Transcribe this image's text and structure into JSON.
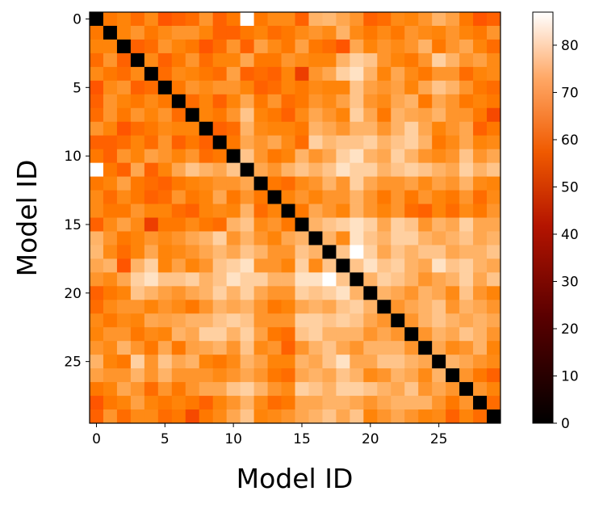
{
  "chart_data": {
    "type": "heatmap",
    "title": "",
    "xlabel": "Model ID",
    "ylabel": "Model ID",
    "n": 30,
    "xlim": [
      -0.5,
      29.5
    ],
    "ylim": [
      29.5,
      -0.5
    ],
    "x_ticks": [
      0,
      5,
      10,
      15,
      20,
      25
    ],
    "y_ticks": [
      0,
      5,
      10,
      15,
      20,
      25
    ],
    "colormap": "gist_heat",
    "colorbar": {
      "vmin": 0,
      "vmax": 87,
      "ticks": [
        0,
        10,
        20,
        30,
        40,
        50,
        60,
        70,
        80
      ]
    },
    "diagonal_value": 0,
    "values": [
      [
        0,
        64,
        66,
        62,
        67,
        58,
        60,
        62,
        69,
        60,
        64,
        87,
        64,
        67,
        67,
        60,
        74,
        75,
        72,
        69,
        60,
        62,
        67,
        66,
        69,
        74,
        71,
        64,
        58,
        60
      ],
      [
        64,
        0,
        66,
        69,
        64,
        67,
        69,
        69,
        66,
        60,
        60,
        64,
        66,
        62,
        64,
        67,
        69,
        67,
        74,
        67,
        64,
        67,
        64,
        69,
        67,
        66,
        69,
        66,
        64,
        69
      ],
      [
        66,
        66,
        0,
        60,
        62,
        69,
        66,
        64,
        58,
        62,
        69,
        60,
        71,
        67,
        64,
        71,
        64,
        62,
        58,
        72,
        66,
        69,
        67,
        69,
        74,
        64,
        69,
        72,
        66,
        62
      ],
      [
        62,
        69,
        60,
        0,
        67,
        60,
        64,
        69,
        62,
        66,
        66,
        72,
        64,
        64,
        69,
        67,
        66,
        66,
        74,
        79,
        77,
        69,
        66,
        64,
        69,
        79,
        74,
        69,
        71,
        67
      ],
      [
        67,
        64,
        62,
        67,
        0,
        62,
        67,
        66,
        64,
        62,
        71,
        60,
        62,
        60,
        66,
        54,
        69,
        72,
        79,
        82,
        74,
        66,
        72,
        67,
        64,
        69,
        69,
        62,
        66,
        67
      ],
      [
        58,
        67,
        69,
        60,
        62,
        0,
        64,
        69,
        67,
        69,
        69,
        66,
        60,
        62,
        66,
        64,
        67,
        66,
        66,
        77,
        71,
        69,
        71,
        66,
        72,
        77,
        74,
        69,
        64,
        62
      ],
      [
        60,
        69,
        66,
        64,
        67,
        64,
        0,
        62,
        66,
        60,
        66,
        72,
        64,
        69,
        62,
        64,
        69,
        67,
        71,
        77,
        69,
        67,
        72,
        74,
        64,
        72,
        69,
        64,
        66,
        64
      ],
      [
        62,
        69,
        64,
        69,
        66,
        69,
        62,
        0,
        66,
        64,
        69,
        77,
        66,
        64,
        60,
        67,
        72,
        69,
        66,
        79,
        72,
        64,
        74,
        72,
        71,
        74,
        69,
        69,
        64,
        56
      ],
      [
        69,
        66,
        58,
        62,
        64,
        67,
        66,
        66,
        0,
        60,
        62,
        74,
        67,
        66,
        66,
        64,
        74,
        72,
        69,
        74,
        74,
        69,
        74,
        79,
        72,
        66,
        69,
        72,
        60,
        64
      ],
      [
        60,
        60,
        62,
        66,
        62,
        69,
        60,
        64,
        60,
        0,
        64,
        72,
        69,
        72,
        67,
        62,
        79,
        75,
        77,
        77,
        79,
        74,
        77,
        79,
        74,
        64,
        67,
        72,
        66,
        67
      ],
      [
        64,
        60,
        69,
        66,
        71,
        69,
        66,
        69,
        62,
        64,
        0,
        77,
        69,
        64,
        66,
        74,
        69,
        72,
        79,
        82,
        74,
        72,
        79,
        74,
        69,
        67,
        69,
        77,
        69,
        72
      ],
      [
        87,
        64,
        60,
        72,
        60,
        66,
        72,
        77,
        74,
        72,
        77,
        0,
        72,
        69,
        74,
        77,
        74,
        77,
        82,
        79,
        79,
        74,
        77,
        79,
        77,
        74,
        72,
        79,
        74,
        77
      ],
      [
        64,
        66,
        71,
        64,
        62,
        60,
        64,
        66,
        67,
        69,
        69,
        72,
        0,
        64,
        62,
        67,
        69,
        74,
        69,
        79,
        72,
        69,
        69,
        71,
        67,
        71,
        69,
        74,
        67,
        66
      ],
      [
        67,
        62,
        67,
        64,
        60,
        62,
        69,
        64,
        66,
        72,
        64,
        69,
        64,
        0,
        66,
        69,
        66,
        69,
        69,
        74,
        69,
        64,
        69,
        64,
        69,
        66,
        64,
        69,
        62,
        67
      ],
      [
        67,
        64,
        64,
        69,
        66,
        66,
        62,
        60,
        66,
        67,
        66,
        74,
        62,
        66,
        0,
        64,
        72,
        69,
        66,
        74,
        69,
        66,
        69,
        62,
        60,
        66,
        62,
        67,
        64,
        69
      ],
      [
        60,
        67,
        71,
        67,
        54,
        64,
        64,
        67,
        64,
        62,
        74,
        77,
        67,
        69,
        64,
        0,
        74,
        77,
        79,
        82,
        79,
        72,
        79,
        77,
        69,
        74,
        72,
        79,
        72,
        72
      ],
      [
        74,
        69,
        64,
        66,
        69,
        67,
        69,
        72,
        74,
        79,
        69,
        74,
        69,
        66,
        72,
        74,
        0,
        74,
        67,
        82,
        77,
        74,
        79,
        79,
        74,
        72,
        74,
        77,
        72,
        74
      ],
      [
        75,
        67,
        62,
        66,
        72,
        66,
        67,
        69,
        72,
        75,
        72,
        77,
        74,
        69,
        69,
        77,
        74,
        0,
        77,
        87,
        79,
        72,
        77,
        74,
        77,
        77,
        72,
        74,
        74,
        77
      ],
      [
        72,
        74,
        58,
        74,
        79,
        66,
        71,
        66,
        69,
        77,
        79,
        82,
        69,
        69,
        66,
        79,
        67,
        77,
        0,
        77,
        82,
        77,
        79,
        74,
        72,
        82,
        77,
        79,
        74,
        72
      ],
      [
        69,
        67,
        72,
        79,
        82,
        77,
        77,
        79,
        74,
        77,
        82,
        79,
        79,
        74,
        74,
        82,
        82,
        87,
        77,
        0,
        74,
        79,
        77,
        74,
        69,
        72,
        74,
        79,
        72,
        77
      ],
      [
        60,
        64,
        66,
        77,
        74,
        71,
        69,
        72,
        74,
        79,
        74,
        79,
        72,
        69,
        69,
        79,
        77,
        79,
        82,
        74,
        0,
        74,
        72,
        69,
        74,
        72,
        67,
        77,
        69,
        66
      ],
      [
        62,
        67,
        69,
        69,
        66,
        69,
        67,
        64,
        69,
        74,
        72,
        74,
        69,
        64,
        66,
        72,
        74,
        72,
        77,
        79,
        74,
        0,
        69,
        72,
        74,
        77,
        69,
        74,
        72,
        69
      ],
      [
        67,
        64,
        67,
        66,
        72,
        71,
        72,
        74,
        74,
        77,
        79,
        77,
        69,
        69,
        69,
        79,
        79,
        77,
        79,
        77,
        72,
        69,
        0,
        69,
        74,
        77,
        74,
        72,
        74,
        72
      ],
      [
        66,
        69,
        69,
        64,
        67,
        66,
        74,
        72,
        79,
        79,
        74,
        79,
        71,
        64,
        62,
        77,
        79,
        74,
        74,
        74,
        69,
        72,
        69,
        0,
        69,
        74,
        72,
        77,
        74,
        69
      ],
      [
        69,
        67,
        74,
        69,
        64,
        72,
        64,
        71,
        72,
        74,
        69,
        77,
        67,
        69,
        60,
        69,
        74,
        77,
        72,
        69,
        74,
        74,
        74,
        69,
        0,
        72,
        67,
        69,
        74,
        66
      ],
      [
        74,
        66,
        64,
        79,
        69,
        77,
        72,
        74,
        66,
        64,
        67,
        74,
        71,
        66,
        66,
        74,
        72,
        77,
        82,
        72,
        72,
        77,
        77,
        74,
        72,
        0,
        74,
        72,
        69,
        67
      ],
      [
        71,
        69,
        69,
        74,
        69,
        74,
        69,
        69,
        69,
        67,
        69,
        72,
        69,
        64,
        62,
        72,
        74,
        72,
        77,
        74,
        67,
        69,
        74,
        72,
        67,
        74,
        0,
        69,
        64,
        60
      ],
      [
        64,
        66,
        72,
        69,
        62,
        69,
        64,
        69,
        72,
        72,
        77,
        79,
        74,
        69,
        67,
        79,
        77,
        74,
        79,
        79,
        77,
        74,
        72,
        77,
        69,
        72,
        69,
        0,
        69,
        66
      ],
      [
        58,
        64,
        66,
        71,
        66,
        64,
        66,
        64,
        60,
        66,
        69,
        74,
        67,
        62,
        64,
        72,
        72,
        74,
        74,
        72,
        69,
        72,
        74,
        74,
        74,
        69,
        64,
        69,
        0,
        62
      ],
      [
        60,
        69,
        62,
        67,
        67,
        62,
        64,
        56,
        64,
        67,
        72,
        77,
        66,
        67,
        69,
        72,
        74,
        77,
        72,
        77,
        66,
        69,
        72,
        69,
        66,
        67,
        60,
        66,
        62,
        0
      ]
    ]
  }
}
